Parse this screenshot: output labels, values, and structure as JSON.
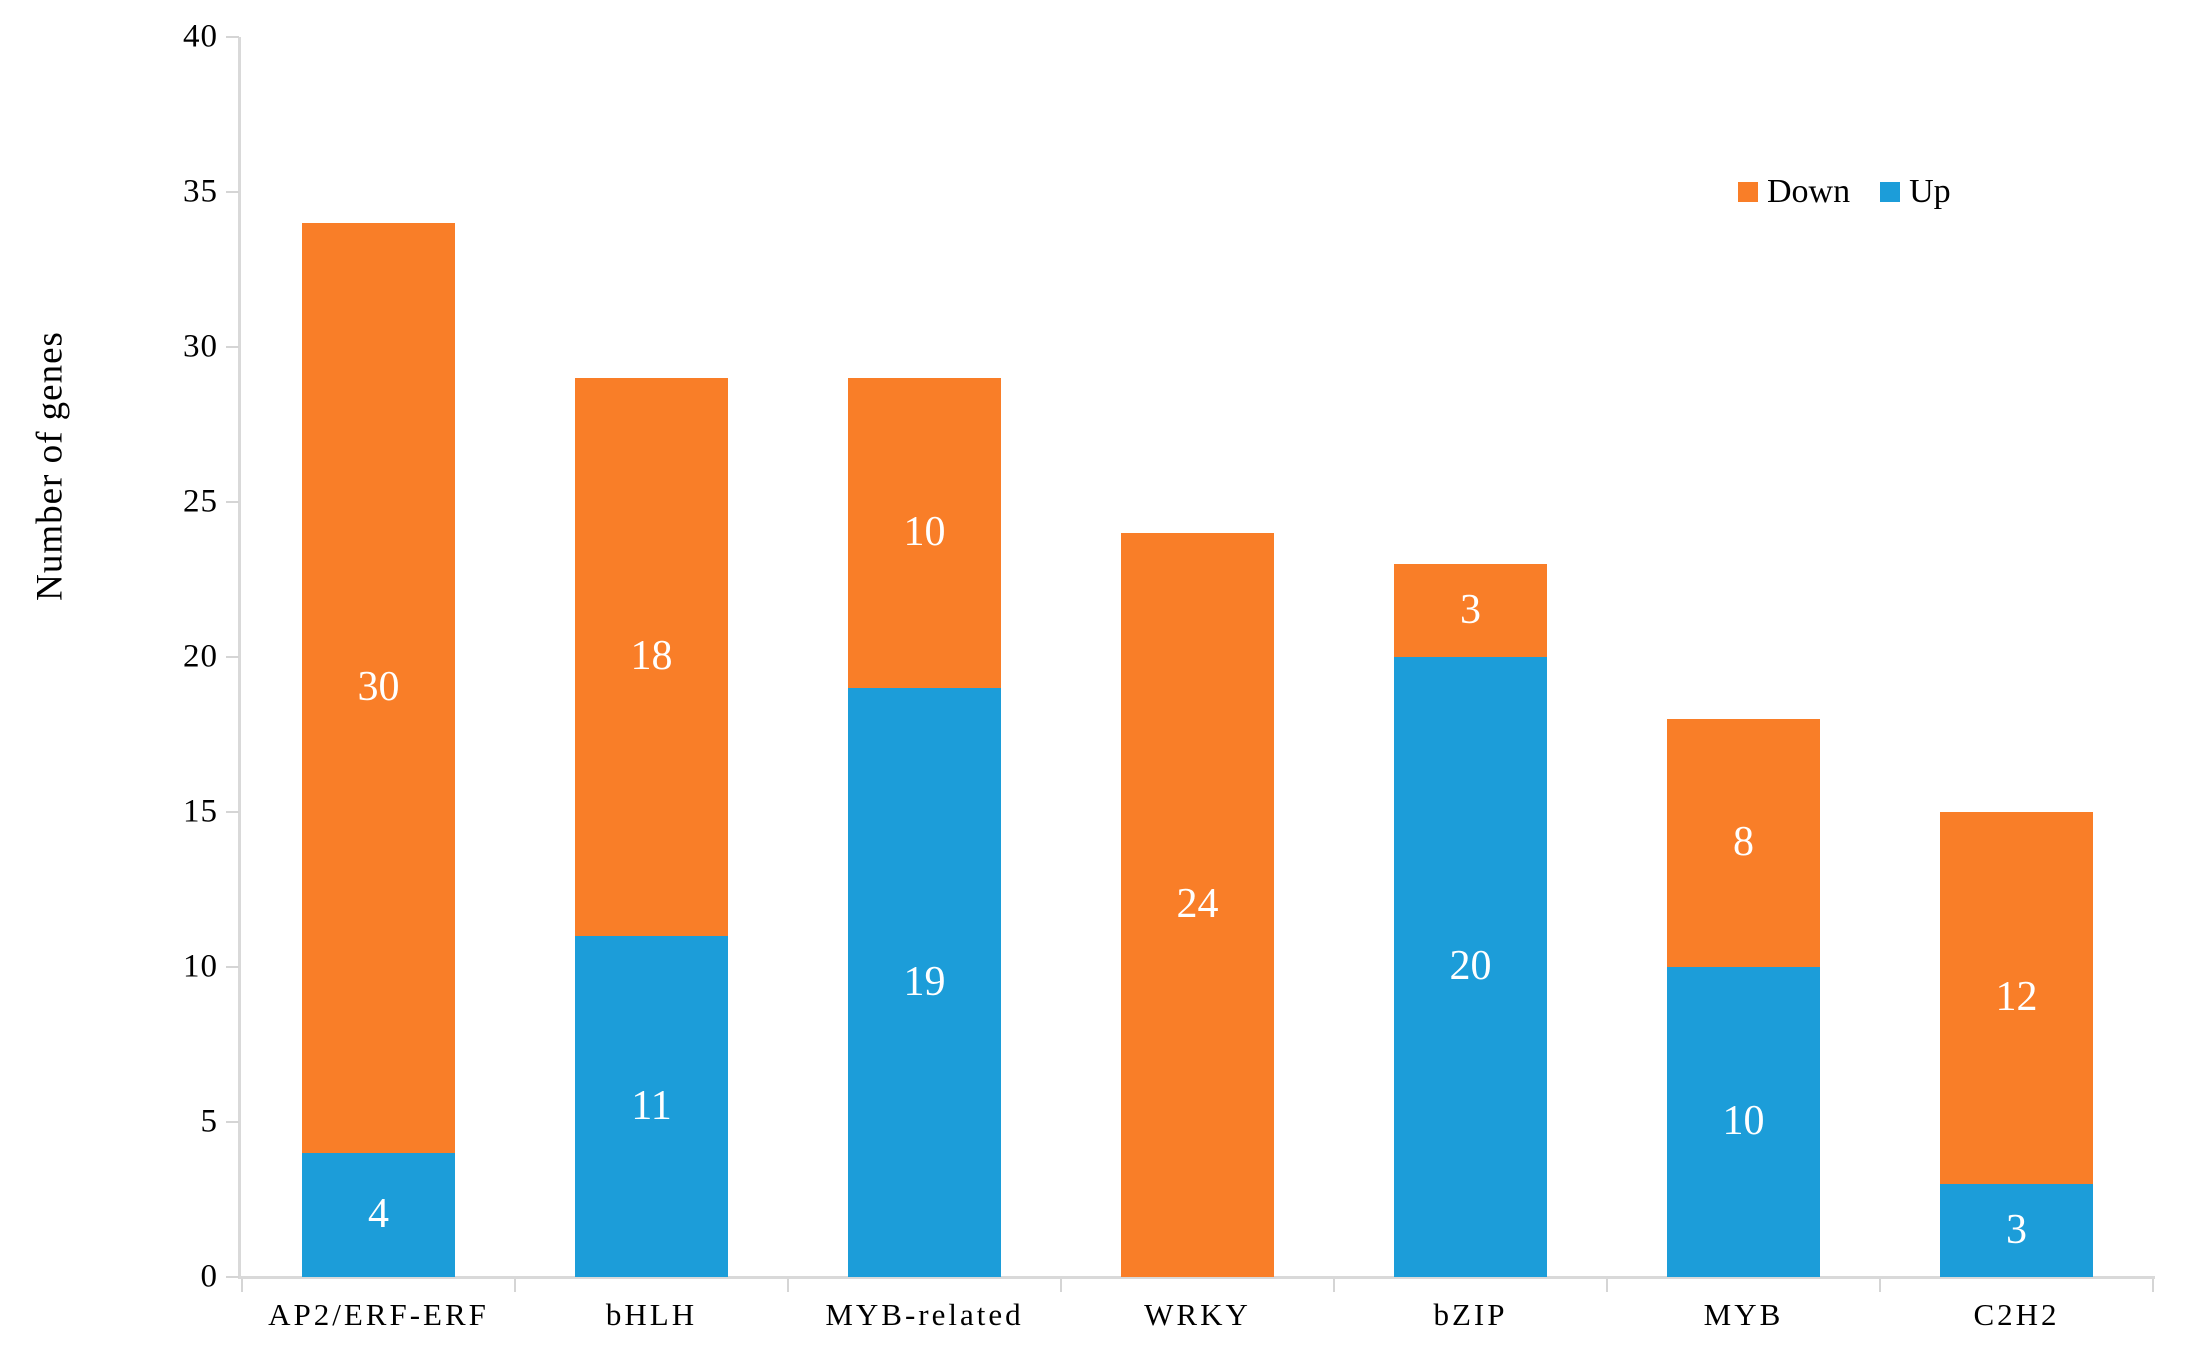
{
  "figure": {
    "background": "#ffffff",
    "axis_color": "#d9d9d9",
    "tick_color": "#d5d5d5",
    "text_color": "#000000"
  },
  "legend": {
    "series_order": [
      1,
      0
    ]
  },
  "chart_data": {
    "type": "bar",
    "stacked": true,
    "title": "",
    "xlabel": "",
    "ylabel": "Number of genes",
    "categories": [
      "AP2/ERF-ERF",
      "bHLH",
      "MYB-related",
      "WRKY",
      "bZIP",
      "MYB",
      "C2H2"
    ],
    "series": [
      {
        "name": "Up",
        "color": "#1C9DD9",
        "values": [
          4,
          11,
          19,
          0,
          20,
          10,
          3
        ]
      },
      {
        "name": "Down",
        "color": "#F97E28",
        "values": [
          30,
          18,
          10,
          24,
          3,
          8,
          12
        ]
      }
    ],
    "totals": [
      34,
      29,
      29,
      24,
      23,
      18,
      15
    ],
    "ylim": [
      0,
      40
    ],
    "yticks": [
      0,
      5,
      10,
      15,
      20,
      25,
      30,
      35,
      40
    ],
    "grid": false,
    "legend_position": "top-right",
    "data_label_color": "#ffffff",
    "data_labels_hidden_when_zero": true
  }
}
